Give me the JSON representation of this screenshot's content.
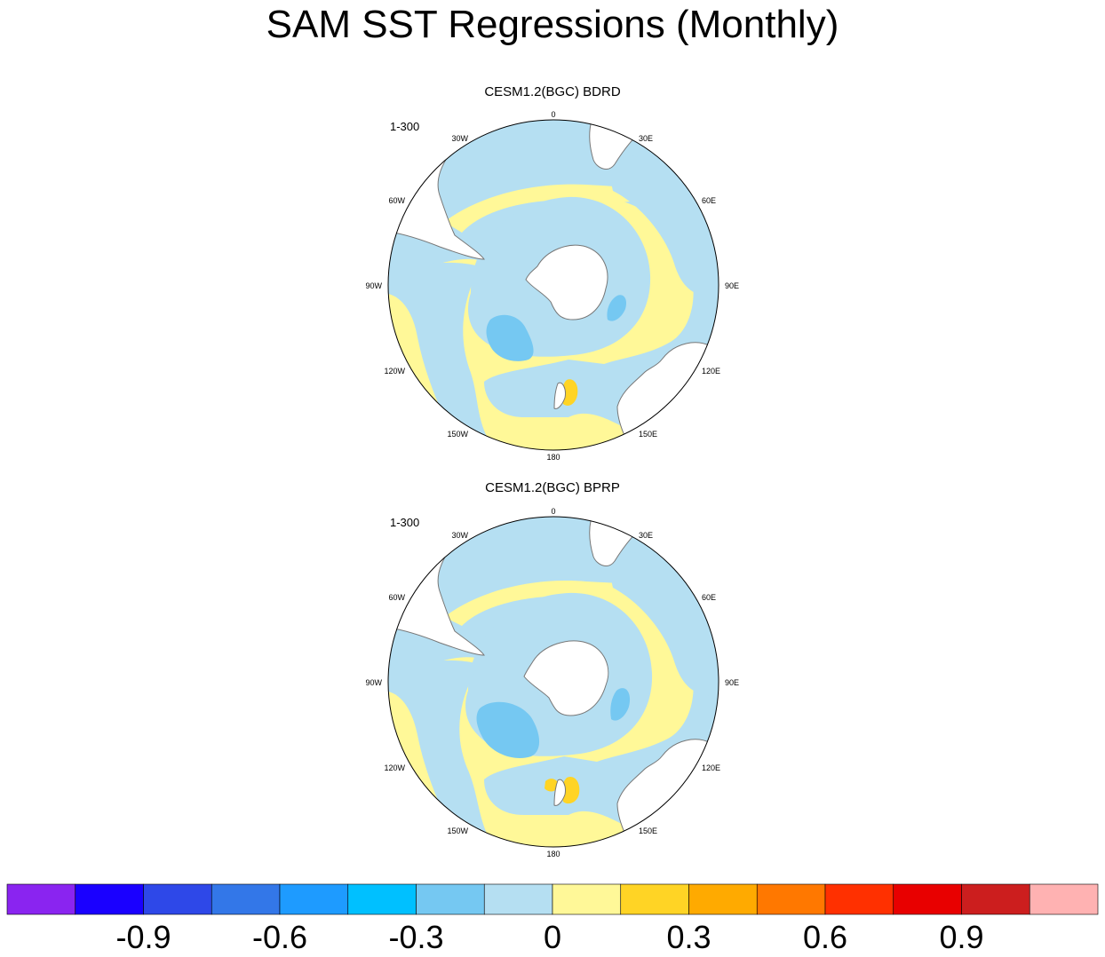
{
  "title": "SAM SST Regressions (Monthly)",
  "panels": [
    {
      "title": "CESM1.2(BGC) BDRD",
      "run_label": "1-300",
      "lon_labels": [
        "0",
        "30E",
        "60E",
        "90E",
        "120E",
        "150E",
        "180",
        "150W",
        "120W",
        "90W",
        "60W",
        "30W"
      ]
    },
    {
      "title": "CESM1.2(BGC) BPRP",
      "run_label": "1-300",
      "lon_labels": [
        "0",
        "30E",
        "60E",
        "90E",
        "120E",
        "150E",
        "180",
        "150W",
        "120W",
        "90W",
        "60W",
        "30W"
      ]
    }
  ],
  "colorbar": {
    "colors": [
      "#8a24f0",
      "#1a00ff",
      "#2e48e8",
      "#3377e8",
      "#1e9bff",
      "#00c0ff",
      "#75c8f2",
      "#b5dff2",
      "#fff898",
      "#ffd425",
      "#ffaa00",
      "#ff7800",
      "#ff3000",
      "#e80000",
      "#cc1e1e",
      "#ffb2b2"
    ],
    "labels": [
      "-0.9",
      "-0.6",
      "-0.3",
      "0",
      "0.3",
      "0.6",
      "0.9"
    ]
  },
  "colors": {
    "ocean_neg_weak": "#b5dff2",
    "ocean_neg_mid": "#75c8f2",
    "ocean_pos_weak": "#fff898",
    "ocean_pos_mid": "#ffd425",
    "land": "#ffffff",
    "coast": "#777777"
  }
}
